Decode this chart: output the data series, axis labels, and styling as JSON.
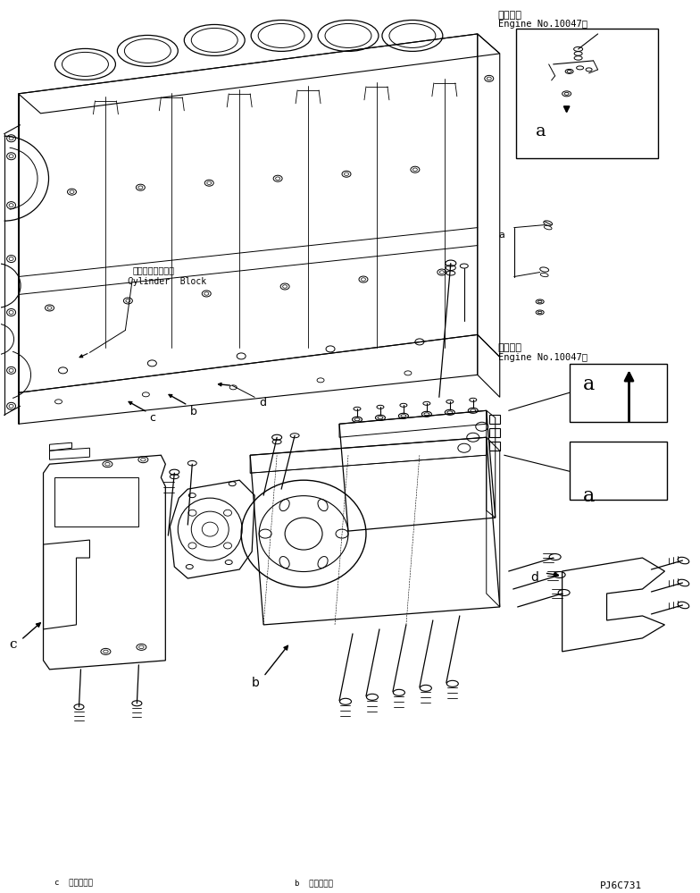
{
  "bg_color": "#ffffff",
  "line_color": "#000000",
  "fig_width": 7.84,
  "fig_height": 9.99,
  "dpi": 100,
  "part_code": "PJ6C731",
  "top_right_label1": "適用号機",
  "top_right_label2": "Engine No.10047～",
  "mid_right_label1": "適用号機",
  "mid_right_label2": "Engine No.10047～",
  "cylinder_block_jp": "シリンダブロック",
  "cylinder_block_en": "Cylinder  Block",
  "label_a": "a",
  "label_b": "b",
  "label_c": "c",
  "label_d": "d"
}
